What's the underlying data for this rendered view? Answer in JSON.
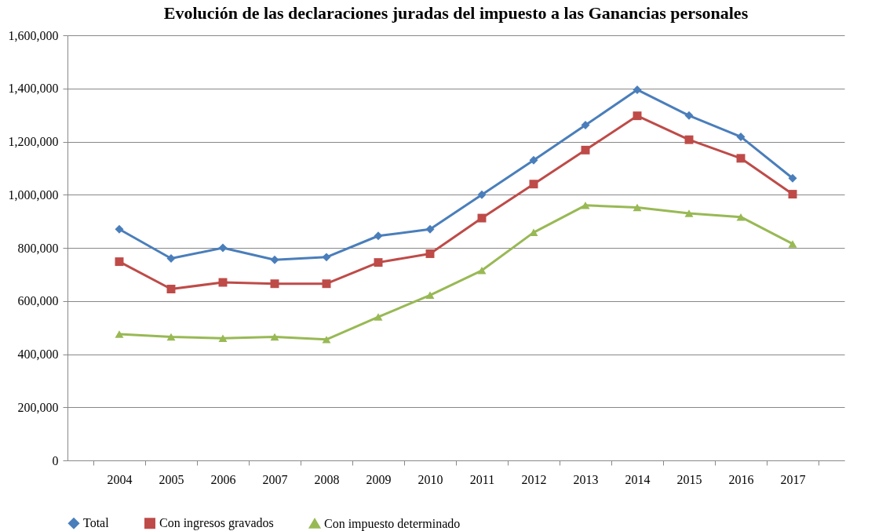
{
  "chart_data": {
    "type": "line",
    "title": "Evolución de las declaraciones juradas del impuesto a las Ganancias personales",
    "categories": [
      "2004",
      "2005",
      "2006",
      "2007",
      "2008",
      "2009",
      "2010",
      "2011",
      "2012",
      "2013",
      "2014",
      "2015",
      "2016",
      "2017"
    ],
    "series": [
      {
        "name": "Total",
        "color": "#4a7ebb",
        "marker": "diamond",
        "values": [
          870000,
          760000,
          800000,
          755000,
          765000,
          845000,
          870000,
          1000000,
          1130000,
          1262000,
          1395000,
          1298000,
          1218000,
          1062000
        ]
      },
      {
        "name": "Con ingresos gravados",
        "color": "#be4b48",
        "marker": "square",
        "values": [
          748000,
          645000,
          670000,
          665000,
          665000,
          745000,
          778000,
          912000,
          1040000,
          1168000,
          1297000,
          1207000,
          1137000,
          1002000
        ]
      },
      {
        "name": "Con impuesto determinado",
        "color": "#98b954",
        "marker": "triangle",
        "values": [
          475000,
          465000,
          460000,
          465000,
          455000,
          540000,
          622000,
          715000,
          858000,
          960000,
          952000,
          930000,
          916000,
          815000
        ]
      }
    ],
    "ylim": [
      0,
      1600000
    ],
    "yticks": [
      0,
      {
        "value": 200000,
        "label": "200,000"
      },
      {
        "value": 400000,
        "label": "400,000"
      },
      {
        "value": 600000,
        "label": "600,000"
      },
      {
        "value": 800000,
        "label": "800,000"
      },
      {
        "value": 1000000,
        "label": "1,000,000"
      },
      {
        "value": 1200000,
        "label": "1,200,000"
      },
      {
        "value": 1400000,
        "label": "1,400,000"
      },
      {
        "value": 1600000,
        "label": "1,600,000"
      }
    ],
    "grid": "y",
    "legend": "bottom"
  }
}
